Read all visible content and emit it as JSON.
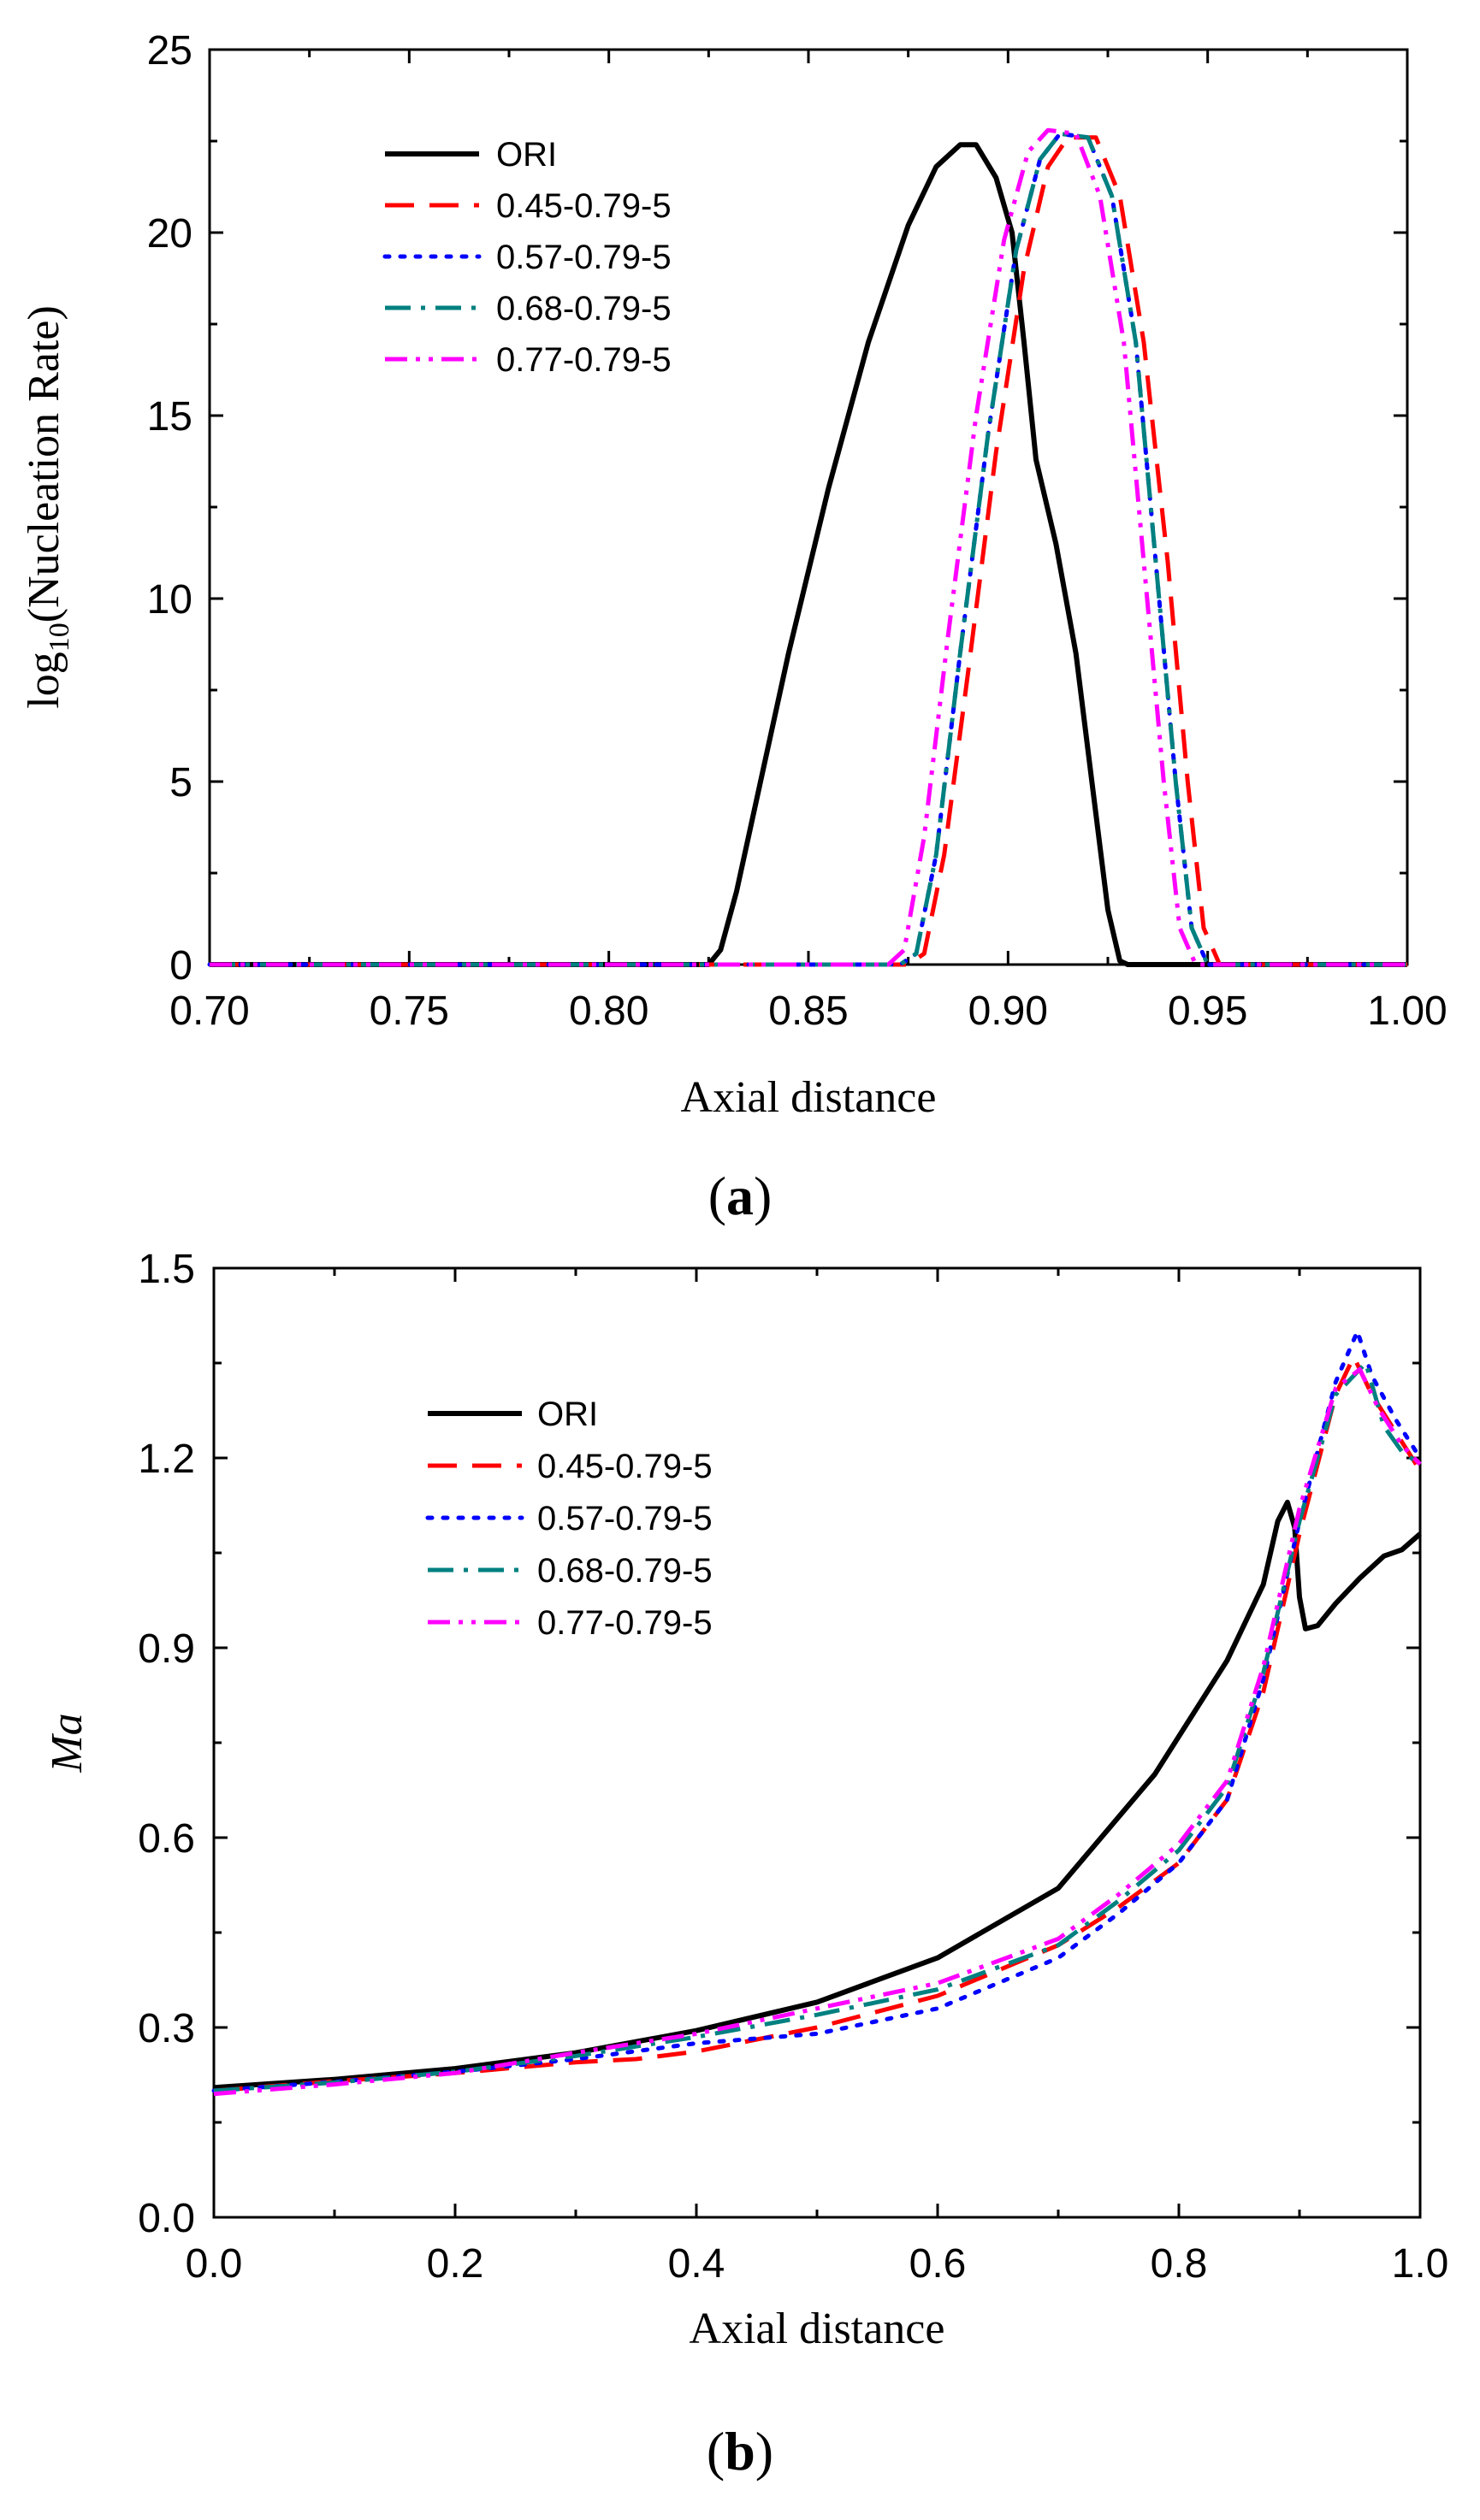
{
  "chart_data": [
    {
      "type": "line",
      "panel": "a",
      "panel_label": {
        "open": "(",
        "letter": "a",
        "close": ")"
      },
      "xlabel": "Axial distance",
      "ylabel": {
        "prefix": "log",
        "sub": "10",
        "suffix": "(Nucleation Rate)"
      },
      "xlim": [
        0.7,
        1.0
      ],
      "ylim": [
        0,
        25
      ],
      "xticks": [
        "0.70",
        "0.75",
        "0.80",
        "0.85",
        "0.90",
        "0.95",
        "1.00"
      ],
      "yticks": [
        "0",
        "5",
        "10",
        "15",
        "20",
        "25"
      ],
      "legend": "top-left",
      "series": [
        {
          "name": "ORI",
          "color": "#000000",
          "dash": "solid",
          "points": [
            [
              0.7,
              0
            ],
            [
              0.825,
              0
            ],
            [
              0.828,
              0.4
            ],
            [
              0.832,
              2
            ],
            [
              0.838,
              5
            ],
            [
              0.845,
              8.5
            ],
            [
              0.855,
              13
            ],
            [
              0.865,
              17
            ],
            [
              0.875,
              20.2
            ],
            [
              0.882,
              21.8
            ],
            [
              0.888,
              22.4
            ],
            [
              0.892,
              22.4
            ],
            [
              0.897,
              21.5
            ],
            [
              0.901,
              20
            ],
            [
              0.904,
              17
            ],
            [
              0.907,
              13.8
            ],
            [
              0.912,
              11.5
            ],
            [
              0.917,
              8.5
            ],
            [
              0.921,
              5
            ],
            [
              0.925,
              1.5
            ],
            [
              0.928,
              0.1
            ],
            [
              0.93,
              0
            ],
            [
              1.0,
              0
            ]
          ]
        },
        {
          "name": "0.45-0.79-5",
          "color": "#ff0000",
          "dash": "longdash",
          "points": [
            [
              0.7,
              0
            ],
            [
              0.875,
              0
            ],
            [
              0.879,
              0.3
            ],
            [
              0.884,
              3
            ],
            [
              0.89,
              8
            ],
            [
              0.897,
              14
            ],
            [
              0.904,
              19
            ],
            [
              0.91,
              21.8
            ],
            [
              0.915,
              22.6
            ],
            [
              0.922,
              22.6
            ],
            [
              0.928,
              21
            ],
            [
              0.934,
              17
            ],
            [
              0.94,
              11
            ],
            [
              0.945,
              5
            ],
            [
              0.949,
              1
            ],
            [
              0.953,
              0
            ],
            [
              1.0,
              0
            ]
          ]
        },
        {
          "name": "0.57-0.79-5",
          "color": "#0000ff",
          "dash": "dot",
          "points": [
            [
              0.7,
              0
            ],
            [
              0.873,
              0
            ],
            [
              0.877,
              0.3
            ],
            [
              0.882,
              3
            ],
            [
              0.888,
              8.5
            ],
            [
              0.895,
              14.5
            ],
            [
              0.902,
              19.5
            ],
            [
              0.908,
              22
            ],
            [
              0.913,
              22.7
            ],
            [
              0.92,
              22.6
            ],
            [
              0.926,
              21
            ],
            [
              0.932,
              17
            ],
            [
              0.937,
              11
            ],
            [
              0.942,
              5
            ],
            [
              0.946,
              1
            ],
            [
              0.95,
              0
            ],
            [
              1.0,
              0
            ]
          ]
        },
        {
          "name": "0.68-0.79-5",
          "color": "#008080",
          "dash": "dashdot",
          "points": [
            [
              0.7,
              0
            ],
            [
              0.873,
              0
            ],
            [
              0.877,
              0.3
            ],
            [
              0.882,
              3
            ],
            [
              0.888,
              8.5
            ],
            [
              0.895,
              14.5
            ],
            [
              0.902,
              19.5
            ],
            [
              0.908,
              22
            ],
            [
              0.913,
              22.7
            ],
            [
              0.92,
              22.6
            ],
            [
              0.926,
              21
            ],
            [
              0.932,
              17
            ],
            [
              0.937,
              11
            ],
            [
              0.942,
              5
            ],
            [
              0.946,
              1
            ],
            [
              0.95,
              0
            ],
            [
              1.0,
              0
            ]
          ]
        },
        {
          "name": "0.77-0.79-5",
          "color": "#ff00ff",
          "dash": "dashdotdot",
          "points": [
            [
              0.7,
              0
            ],
            [
              0.87,
              0
            ],
            [
              0.874,
              0.4
            ],
            [
              0.879,
              3.5
            ],
            [
              0.885,
              9
            ],
            [
              0.892,
              15
            ],
            [
              0.899,
              19.8
            ],
            [
              0.905,
              22.2
            ],
            [
              0.91,
              22.8
            ],
            [
              0.917,
              22.7
            ],
            [
              0.923,
              21
            ],
            [
              0.929,
              17
            ],
            [
              0.934,
              11
            ],
            [
              0.939,
              5
            ],
            [
              0.943,
              1
            ],
            [
              0.947,
              0
            ],
            [
              1.0,
              0
            ]
          ]
        }
      ]
    },
    {
      "type": "line",
      "panel": "b",
      "panel_label": {
        "open": "(",
        "letter": "b",
        "close": ")"
      },
      "xlabel": "Axial distance",
      "ylabel": {
        "text": "Ma"
      },
      "xlim": [
        0.0,
        1.0
      ],
      "ylim": [
        0.0,
        1.5
      ],
      "xticks": [
        "0.0",
        "0.2",
        "0.4",
        "0.6",
        "0.8",
        "1.0"
      ],
      "yticks": [
        "0.0",
        "0.3",
        "0.6",
        "0.9",
        "1.2",
        "1.5"
      ],
      "legend": "top-left",
      "series": [
        {
          "name": "ORI",
          "color": "#000000",
          "dash": "solid",
          "points": [
            [
              0,
              0.205
            ],
            [
              0.1,
              0.218
            ],
            [
              0.2,
              0.235
            ],
            [
              0.3,
              0.26
            ],
            [
              0.4,
              0.295
            ],
            [
              0.5,
              0.34
            ],
            [
              0.6,
              0.41
            ],
            [
              0.7,
              0.52
            ],
            [
              0.78,
              0.7
            ],
            [
              0.84,
              0.88
            ],
            [
              0.87,
              1.0
            ],
            [
              0.882,
              1.1
            ],
            [
              0.89,
              1.13
            ],
            [
              0.896,
              1.09
            ],
            [
              0.9,
              0.98
            ],
            [
              0.905,
              0.93
            ],
            [
              0.915,
              0.935
            ],
            [
              0.93,
              0.97
            ],
            [
              0.95,
              1.01
            ],
            [
              0.97,
              1.045
            ],
            [
              0.985,
              1.055
            ],
            [
              1.0,
              1.08
            ]
          ]
        },
        {
          "name": "0.45-0.79-5",
          "color": "#ff0000",
          "dash": "longdash",
          "points": [
            [
              0,
              0.2
            ],
            [
              0.1,
              0.215
            ],
            [
              0.2,
              0.228
            ],
            [
              0.3,
              0.245
            ],
            [
              0.35,
              0.25
            ],
            [
              0.4,
              0.262
            ],
            [
              0.5,
              0.3
            ],
            [
              0.6,
              0.35
            ],
            [
              0.7,
              0.43
            ],
            [
              0.75,
              0.49
            ],
            [
              0.8,
              0.56
            ],
            [
              0.84,
              0.66
            ],
            [
              0.87,
              0.83
            ],
            [
              0.9,
              1.08
            ],
            [
              0.93,
              1.3
            ],
            [
              0.945,
              1.36
            ],
            [
              0.96,
              1.3
            ],
            [
              0.98,
              1.24
            ],
            [
              1.0,
              1.18
            ]
          ]
        },
        {
          "name": "0.57-0.79-5",
          "color": "#0000ff",
          "dash": "dot",
          "points": [
            [
              0,
              0.2
            ],
            [
              0.1,
              0.214
            ],
            [
              0.2,
              0.23
            ],
            [
              0.3,
              0.25
            ],
            [
              0.4,
              0.275
            ],
            [
              0.5,
              0.29
            ],
            [
              0.6,
              0.33
            ],
            [
              0.7,
              0.41
            ],
            [
              0.75,
              0.48
            ],
            [
              0.8,
              0.56
            ],
            [
              0.84,
              0.66
            ],
            [
              0.87,
              0.85
            ],
            [
              0.9,
              1.1
            ],
            [
              0.93,
              1.32
            ],
            [
              0.948,
              1.4
            ],
            [
              0.96,
              1.33
            ],
            [
              0.98,
              1.26
            ],
            [
              1.0,
              1.2
            ]
          ]
        },
        {
          "name": "0.68-0.79-5",
          "color": "#008080",
          "dash": "dashdot",
          "points": [
            [
              0,
              0.2
            ],
            [
              0.1,
              0.213
            ],
            [
              0.2,
              0.23
            ],
            [
              0.3,
              0.255
            ],
            [
              0.4,
              0.285
            ],
            [
              0.5,
              0.32
            ],
            [
              0.6,
              0.36
            ],
            [
              0.7,
              0.43
            ],
            [
              0.75,
              0.5
            ],
            [
              0.8,
              0.58
            ],
            [
              0.84,
              0.68
            ],
            [
              0.87,
              0.86
            ],
            [
              0.9,
              1.1
            ],
            [
              0.93,
              1.3
            ],
            [
              0.945,
              1.33
            ],
            [
              0.955,
              1.35
            ],
            [
              0.97,
              1.25
            ],
            [
              0.985,
              1.21
            ],
            [
              1.0,
              1.19
            ]
          ]
        },
        {
          "name": "0.77-0.79-5",
          "color": "#ff00ff",
          "dash": "dashdotdot",
          "points": [
            [
              0,
              0.195
            ],
            [
              0.1,
              0.21
            ],
            [
              0.2,
              0.228
            ],
            [
              0.3,
              0.26
            ],
            [
              0.4,
              0.29
            ],
            [
              0.5,
              0.33
            ],
            [
              0.6,
              0.37
            ],
            [
              0.7,
              0.44
            ],
            [
              0.75,
              0.51
            ],
            [
              0.8,
              0.59
            ],
            [
              0.84,
              0.69
            ],
            [
              0.87,
              0.87
            ],
            [
              0.9,
              1.12
            ],
            [
              0.93,
              1.31
            ],
            [
              0.95,
              1.34
            ],
            [
              0.965,
              1.28
            ],
            [
              0.985,
              1.22
            ],
            [
              1.0,
              1.19
            ]
          ]
        }
      ]
    }
  ]
}
